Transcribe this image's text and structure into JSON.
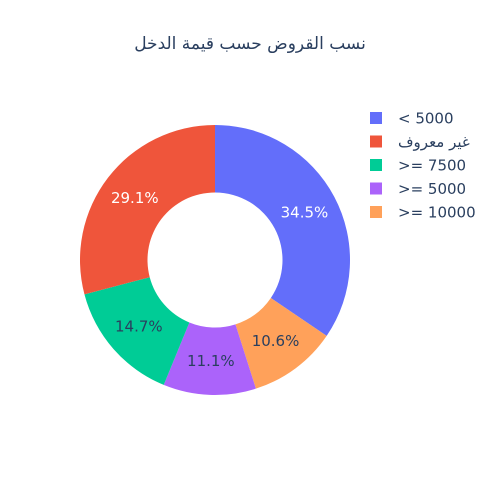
{
  "chart_data": {
    "type": "pie",
    "hole": 0.5,
    "title": "نسب القروض حسب قيمة الدخل",
    "labels": [
      "< 5000",
      "غير معروف",
      ">= 7500",
      ">= 5000",
      ">= 10000"
    ],
    "values": [
      34.5,
      29.1,
      14.7,
      11.1,
      10.6
    ],
    "value_labels": [
      "34.5%",
      "29.1%",
      "14.7%",
      "11.1%",
      "10.6%"
    ],
    "colors": [
      "#636efa",
      "#ef553b",
      "#00cc96",
      "#ab63fa",
      "#ffa15a"
    ],
    "slice_order": [
      0,
      4,
      3,
      2,
      1
    ],
    "direction": "clockwise",
    "start": "top",
    "legend_position": "right"
  }
}
